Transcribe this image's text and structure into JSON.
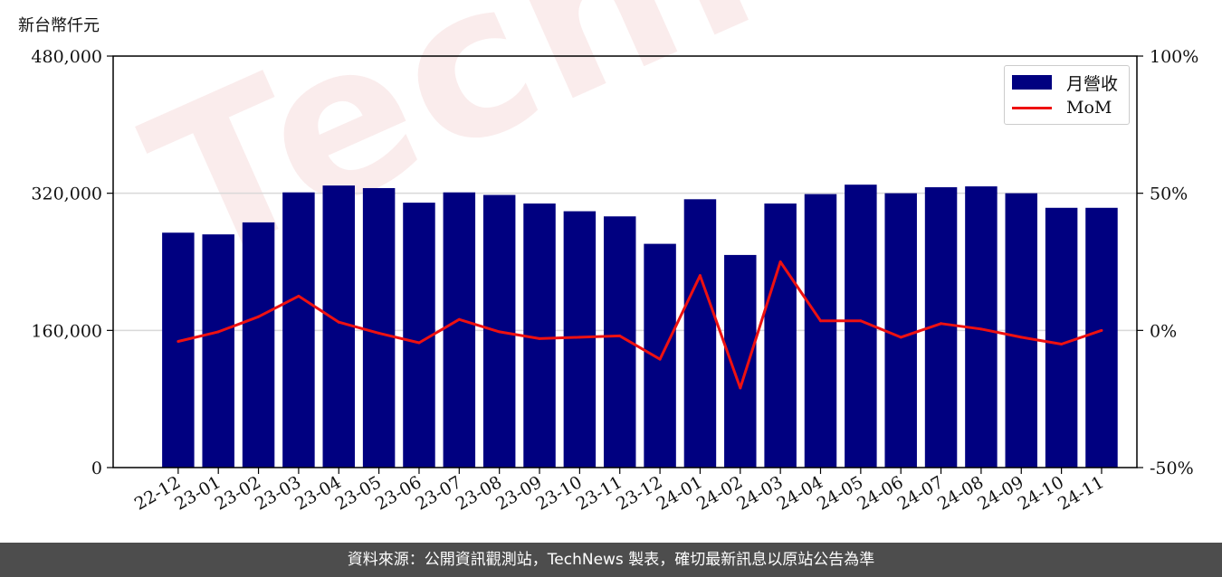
{
  "unit_label": "新台幣仟元",
  "watermark": "TechNews",
  "footer": "資料來源：公開資訊觀測站，TechNews 製表，確切最新訊息以原站公告為準",
  "colors": {
    "bar": "#000080",
    "line": "#ee1111",
    "footer_bg": "#4d4d4d"
  },
  "legend": {
    "bar_label": "月營收",
    "line_label": "MoM"
  },
  "chart_data": {
    "type": "bar",
    "categories": [
      "22-12",
      "23-01",
      "23-02",
      "23-03",
      "23-04",
      "23-05",
      "23-06",
      "23-07",
      "23-08",
      "23-09",
      "23-10",
      "23-11",
      "23-12",
      "24-01",
      "24-02",
      "24-03",
      "24-04",
      "24-05",
      "24-06",
      "24-07",
      "24-08",
      "24-09",
      "24-10",
      "24-11"
    ],
    "series": [
      {
        "name": "月營收",
        "type": "bar",
        "axis": "left",
        "values": [
          274000,
          272000,
          286000,
          321000,
          329000,
          326000,
          309000,
          321000,
          318000,
          308000,
          299000,
          293000,
          261000,
          313000,
          248000,
          308000,
          319000,
          330000,
          320000,
          327000,
          328000,
          320000,
          303000,
          303000
        ]
      },
      {
        "name": "MoM",
        "type": "line",
        "axis": "right",
        "unit": "%",
        "values": [
          -4.0,
          -0.5,
          5.0,
          12.5,
          3.0,
          -1.0,
          -4.5,
          4.0,
          -0.5,
          -3.0,
          -2.5,
          -2.0,
          -10.5,
          20.0,
          -21.0,
          25.0,
          3.5,
          3.5,
          -2.5,
          2.5,
          0.5,
          -2.5,
          -5.0,
          0.0
        ]
      }
    ],
    "left_axis": {
      "ylim": [
        0,
        480000
      ],
      "ticks": [
        "0",
        "160,000",
        "320,000",
        "480,000"
      ],
      "tick_values": [
        0,
        160000,
        320000,
        480000
      ]
    },
    "right_axis": {
      "ylim": [
        -50,
        100
      ],
      "ticks": [
        "-50%",
        "0%",
        "50%",
        "100%"
      ],
      "tick_values": [
        -50,
        0,
        50,
        100
      ]
    },
    "grid": "horizontal",
    "legend_position": "top-right"
  }
}
